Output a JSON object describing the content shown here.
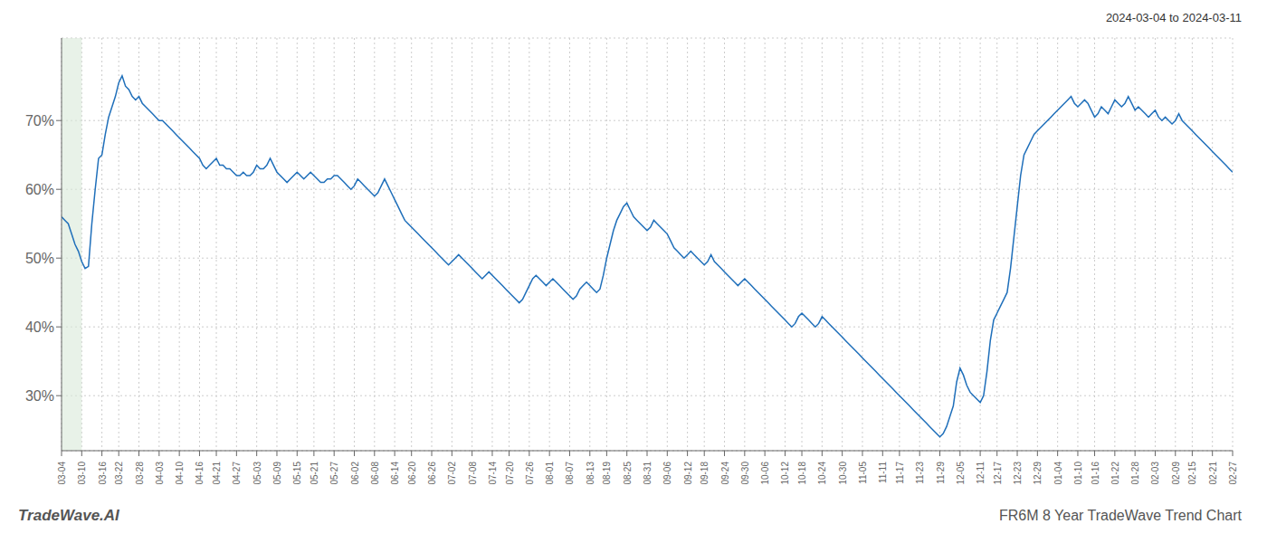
{
  "chart_data": {
    "type": "line",
    "annotations": [
      "2024-03-04 to 2024-03-11",
      "TradeWave.AI",
      "FR6M 8 Year TradeWave Trend Chart"
    ],
    "color": "#1f6fba",
    "grid": true,
    "highlight": {
      "from": "03-04",
      "to": "03-10",
      "color": "#d8ead8"
    },
    "ylim": [
      22,
      82
    ],
    "yticks": [
      {
        "value": 30,
        "label": "30%"
      },
      {
        "value": 40,
        "label": "40%"
      },
      {
        "value": 50,
        "label": "50%"
      },
      {
        "value": 60,
        "label": "60%"
      },
      {
        "value": 70,
        "label": "70%"
      }
    ],
    "categories": [
      "03-04",
      null,
      null,
      null,
      null,
      null,
      "03-10",
      null,
      null,
      null,
      null,
      null,
      "03-16",
      null,
      null,
      null,
      null,
      "03-22",
      null,
      null,
      null,
      null,
      null,
      "03-28",
      null,
      null,
      null,
      null,
      null,
      "04-03",
      null,
      null,
      null,
      null,
      null,
      "04-10",
      null,
      null,
      null,
      null,
      null,
      "04-16",
      null,
      null,
      null,
      null,
      "04-21",
      null,
      null,
      null,
      null,
      null,
      "04-27",
      null,
      null,
      null,
      null,
      null,
      "05-03",
      null,
      null,
      null,
      null,
      null,
      "05-09",
      null,
      null,
      null,
      null,
      null,
      "05-15",
      null,
      null,
      null,
      null,
      "05-21",
      null,
      null,
      null,
      null,
      null,
      "05-27",
      null,
      null,
      null,
      null,
      null,
      "06-02",
      null,
      null,
      null,
      null,
      null,
      "06-08",
      null,
      null,
      null,
      null,
      null,
      "06-14",
      null,
      null,
      null,
      null,
      "06-20",
      null,
      null,
      null,
      null,
      null,
      "06-26",
      null,
      null,
      null,
      null,
      null,
      "07-02",
      null,
      null,
      null,
      null,
      null,
      "07-08",
      null,
      null,
      null,
      null,
      null,
      "07-14",
      null,
      null,
      null,
      null,
      "07-20",
      null,
      null,
      null,
      null,
      null,
      "07-26",
      null,
      null,
      null,
      null,
      null,
      "08-01",
      null,
      null,
      null,
      null,
      null,
      "08-07",
      null,
      null,
      null,
      null,
      null,
      "08-13",
      null,
      null,
      null,
      null,
      "08-19",
      null,
      null,
      null,
      null,
      null,
      "08-25",
      null,
      null,
      null,
      null,
      null,
      "08-31",
      null,
      null,
      null,
      null,
      null,
      "09-06",
      null,
      null,
      null,
      null,
      null,
      "09-12",
      null,
      null,
      null,
      null,
      "09-18",
      null,
      null,
      null,
      null,
      null,
      "09-24",
      null,
      null,
      null,
      null,
      null,
      "09-30",
      null,
      null,
      null,
      null,
      null,
      "10-06",
      null,
      null,
      null,
      null,
      null,
      "10-12",
      null,
      null,
      null,
      null,
      "10-18",
      null,
      null,
      null,
      null,
      null,
      "10-24",
      null,
      null,
      null,
      null,
      null,
      "10-30",
      null,
      null,
      null,
      null,
      null,
      "11-05",
      null,
      null,
      null,
      null,
      null,
      "11-11",
      null,
      null,
      null,
      null,
      "11-17",
      null,
      null,
      null,
      null,
      null,
      "11-23",
      null,
      null,
      null,
      null,
      null,
      "11-29",
      null,
      null,
      null,
      null,
      null,
      "12-05",
      null,
      null,
      null,
      null,
      null,
      "12-11",
      null,
      null,
      null,
      null,
      "12-17",
      null,
      null,
      null,
      null,
      null,
      "12-23",
      null,
      null,
      null,
      null,
      null,
      "12-29",
      null,
      null,
      null,
      null,
      null,
      "01-04",
      null,
      null,
      null,
      null,
      null,
      "01-10",
      null,
      null,
      null,
      null,
      "01-16",
      null,
      null,
      null,
      null,
      null,
      "01-22",
      null,
      null,
      null,
      null,
      null,
      "01-28",
      null,
      null,
      null,
      null,
      null,
      "02-03",
      null,
      null,
      null,
      null,
      null,
      "02-09",
      null,
      null,
      null,
      null,
      "02-15",
      null,
      null,
      null,
      null,
      null,
      "02-21",
      null,
      null,
      null,
      null,
      null,
      "02-27"
    ],
    "values": [
      56.0,
      55.5,
      55.0,
      53.5,
      52.0,
      51.0,
      49.5,
      48.5,
      48.8,
      55.0,
      60.0,
      64.5,
      65.0,
      68.0,
      70.5,
      72.0,
      73.5,
      75.5,
      76.5,
      75.0,
      74.5,
      73.5,
      73.0,
      73.5,
      72.5,
      72.0,
      71.5,
      71.0,
      70.5,
      70.0,
      70.0,
      69.5,
      69.0,
      68.5,
      68.0,
      67.5,
      67.0,
      66.5,
      66.0,
      65.5,
      65.0,
      64.5,
      63.5,
      63.0,
      63.5,
      64.0,
      64.5,
      63.5,
      63.5,
      63.0,
      63.0,
      62.5,
      62.0,
      62.0,
      62.5,
      62.0,
      62.0,
      62.5,
      63.5,
      63.0,
      63.0,
      63.5,
      64.5,
      63.5,
      62.5,
      62.0,
      61.5,
      61.0,
      61.5,
      62.0,
      62.5,
      62.0,
      61.5,
      62.0,
      62.5,
      62.0,
      61.5,
      61.0,
      61.0,
      61.5,
      61.5,
      62.0,
      62.0,
      61.5,
      61.0,
      60.5,
      60.0,
      60.5,
      61.5,
      61.0,
      60.5,
      60.0,
      59.5,
      59.0,
      59.5,
      60.5,
      61.5,
      60.5,
      59.5,
      58.5,
      57.5,
      56.5,
      55.5,
      55.0,
      54.5,
      54.0,
      53.5,
      53.0,
      52.5,
      52.0,
      51.5,
      51.0,
      50.5,
      50.0,
      49.5,
      49.0,
      49.5,
      50.0,
      50.5,
      50.0,
      49.5,
      49.0,
      48.5,
      48.0,
      47.5,
      47.0,
      47.5,
      48.0,
      47.5,
      47.0,
      46.5,
      46.0,
      45.5,
      45.0,
      44.5,
      44.0,
      43.5,
      44.0,
      45.0,
      46.0,
      47.0,
      47.5,
      47.0,
      46.5,
      46.0,
      46.5,
      47.0,
      46.5,
      46.0,
      45.5,
      45.0,
      44.5,
      44.0,
      44.5,
      45.5,
      46.0,
      46.5,
      46.0,
      45.5,
      45.0,
      45.5,
      47.5,
      50.0,
      52.0,
      54.0,
      55.5,
      56.5,
      57.5,
      58.0,
      57.0,
      56.0,
      55.5,
      55.0,
      54.5,
      54.0,
      54.5,
      55.5,
      55.0,
      54.5,
      54.0,
      53.5,
      52.5,
      51.5,
      51.0,
      50.5,
      50.0,
      50.5,
      51.0,
      50.5,
      50.0,
      49.5,
      49.0,
      49.5,
      50.5,
      49.5,
      49.0,
      48.5,
      48.0,
      47.5,
      47.0,
      46.5,
      46.0,
      46.5,
      47.0,
      46.5,
      46.0,
      45.5,
      45.0,
      44.5,
      44.0,
      43.5,
      43.0,
      42.5,
      42.0,
      41.5,
      41.0,
      40.5,
      40.0,
      40.5,
      41.5,
      42.0,
      41.5,
      41.0,
      40.5,
      40.0,
      40.5,
      41.5,
      41.0,
      40.5,
      40.0,
      39.5,
      39.0,
      38.5,
      38.0,
      37.5,
      37.0,
      36.5,
      36.0,
      35.5,
      35.0,
      34.5,
      34.0,
      33.5,
      33.0,
      32.5,
      32.0,
      31.5,
      31.0,
      30.5,
      30.0,
      29.5,
      29.0,
      28.5,
      28.0,
      27.5,
      27.0,
      26.5,
      26.0,
      25.5,
      25.0,
      24.5,
      24.0,
      24.5,
      25.5,
      27.0,
      28.5,
      32.0,
      34.0,
      33.0,
      31.5,
      30.5,
      30.0,
      29.5,
      29.0,
      30.0,
      33.5,
      38.0,
      41.0,
      42.0,
      43.0,
      44.0,
      45.0,
      48.5,
      53.0,
      57.5,
      62.0,
      65.0,
      66.0,
      67.0,
      68.0,
      68.5,
      69.0,
      69.5,
      70.0,
      70.5,
      71.0,
      71.5,
      72.0,
      72.5,
      73.0,
      73.5,
      72.5,
      72.0,
      72.5,
      73.0,
      72.5,
      71.5,
      70.5,
      71.0,
      72.0,
      71.5,
      71.0,
      72.0,
      73.0,
      72.5,
      72.0,
      72.5,
      73.5,
      72.5,
      71.5,
      72.0,
      71.5,
      71.0,
      70.5,
      71.0,
      71.5,
      70.5,
      70.0,
      70.5,
      70.0,
      69.5,
      70.0,
      71.0,
      70.0,
      69.5,
      69.0,
      68.5,
      68.0,
      67.5,
      67.0,
      66.5,
      66.0,
      65.5,
      65.0,
      64.5,
      64.0,
      63.5,
      63.0,
      62.5
    ]
  }
}
